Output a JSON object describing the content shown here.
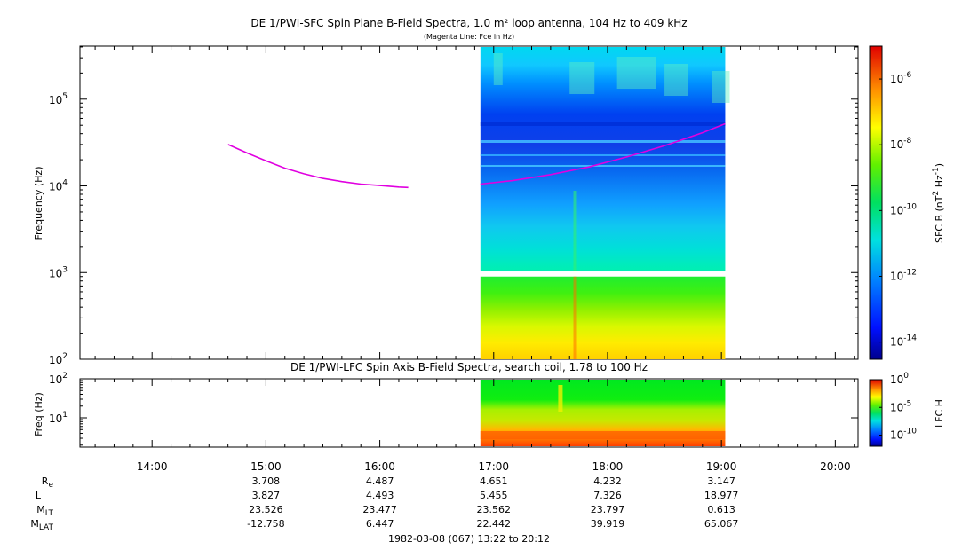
{
  "chart_data": [
    {
      "type": "heatmap",
      "title": "DE 1/PWI-SFC  Spin Plane B-Field Spectra, 1.0 m² loop antenna, 104 Hz to 409 kHz",
      "subtitle": "(Magenta Line: Fce in Hz)",
      "ylabel": "Frequency (Hz)",
      "y_scale": "log",
      "ylim": [
        100,
        409000
      ],
      "y_ticks": [
        {
          "value": 100,
          "base": "10",
          "exp": "2"
        },
        {
          "value": 1000,
          "base": "10",
          "exp": "3"
        },
        {
          "value": 10000,
          "base": "10",
          "exp": "4"
        },
        {
          "value": 100000,
          "base": "10",
          "exp": "5"
        }
      ],
      "data_coverage": {
        "start": "16:53",
        "end": "19:02",
        "gap_hz": [
          900,
          1030
        ]
      },
      "fce_line": {
        "color": "#e000e0",
        "segments": [
          {
            "times": [
              "14:40",
              "14:50",
              "15:00",
              "15:10",
              "15:20",
              "15:30",
              "15:40",
              "15:50",
              "16:00",
              "16:10",
              "16:15"
            ],
            "values": [
              30000,
              24000,
              19500,
              16000,
              13800,
              12200,
              11200,
              10500,
              10100,
              9700,
              9600
            ]
          },
          {
            "times": [
              "16:53",
              "17:10",
              "17:30",
              "17:50",
              "18:10",
              "18:30",
              "18:50",
              "19:02"
            ],
            "values": [
              10500,
              11500,
              13500,
              16500,
              21500,
              29000,
              41000,
              52000
            ]
          }
        ]
      },
      "colorbar": {
        "label_base": "SFC B (nT",
        "label_exp1": "2",
        "label_mid": " Hz",
        "label_exp2": "-1",
        "label_end": ")",
        "scale": "log",
        "range": [
          3e-15,
          1e-05
        ],
        "ticks": [
          {
            "value": 1e-06,
            "base": "10",
            "exp": "-6"
          },
          {
            "value": 1e-08,
            "base": "10",
            "exp": "-8"
          },
          {
            "value": 1e-10,
            "base": "10",
            "exp": "-10"
          },
          {
            "value": 1e-12,
            "base": "10",
            "exp": "-12"
          },
          {
            "value": 1e-14,
            "base": "10",
            "exp": "-14"
          }
        ]
      }
    },
    {
      "type": "heatmap",
      "title": "DE 1/PWI-LFC  Spin Axis B-Field Spectra, search coil, 1.78 to 100 Hz",
      "ylabel": "Freq (Hz)",
      "y_scale": "log",
      "ylim": [
        1.78,
        100
      ],
      "y_ticks": [
        {
          "value": 10,
          "base": "10",
          "exp": "1"
        },
        {
          "value": 100,
          "base": "10",
          "exp": "2"
        }
      ],
      "data_coverage": {
        "start": "16:53",
        "end": "19:02"
      },
      "colorbar": {
        "label": "LFC H",
        "scale": "log",
        "range": [
          1e-12,
          1
        ],
        "ticks": [
          {
            "value": 1,
            "base": "10",
            "exp": "0"
          },
          {
            "value": 1e-05,
            "base": "10",
            "exp": "-5"
          },
          {
            "value": 1e-10,
            "base": "10",
            "exp": "-10"
          }
        ]
      }
    }
  ],
  "time_axis": {
    "start": "13:22",
    "end": "20:12",
    "tick_labels": [
      "14:00",
      "15:00",
      "16:00",
      "17:00",
      "18:00",
      "19:00",
      "20:00"
    ],
    "tick_minutes": [
      840,
      900,
      960,
      1020,
      1080,
      1140,
      1200
    ],
    "minor_step_minutes": 10
  },
  "ephemeris": {
    "columns": [
      "15:00",
      "16:00",
      "17:00",
      "18:00",
      "19:00"
    ],
    "rows": [
      {
        "label": "R",
        "sub": "e",
        "values": [
          "3.708",
          "4.487",
          "4.651",
          "4.232",
          "3.147"
        ]
      },
      {
        "label": "L",
        "sub": "",
        "values": [
          "3.827",
          "4.493",
          "5.455",
          "7.326",
          "18.977"
        ]
      },
      {
        "label": "M",
        "sub": "LT",
        "values": [
          "23.526",
          "23.477",
          "23.562",
          "23.797",
          "0.613"
        ]
      },
      {
        "label": "M",
        "sub": "LAT",
        "values": [
          "-12.758",
          "6.447",
          "22.442",
          "39.919",
          "65.067"
        ]
      }
    ]
  },
  "footer": "1982-03-08 (067) 13:22 to 20:12"
}
